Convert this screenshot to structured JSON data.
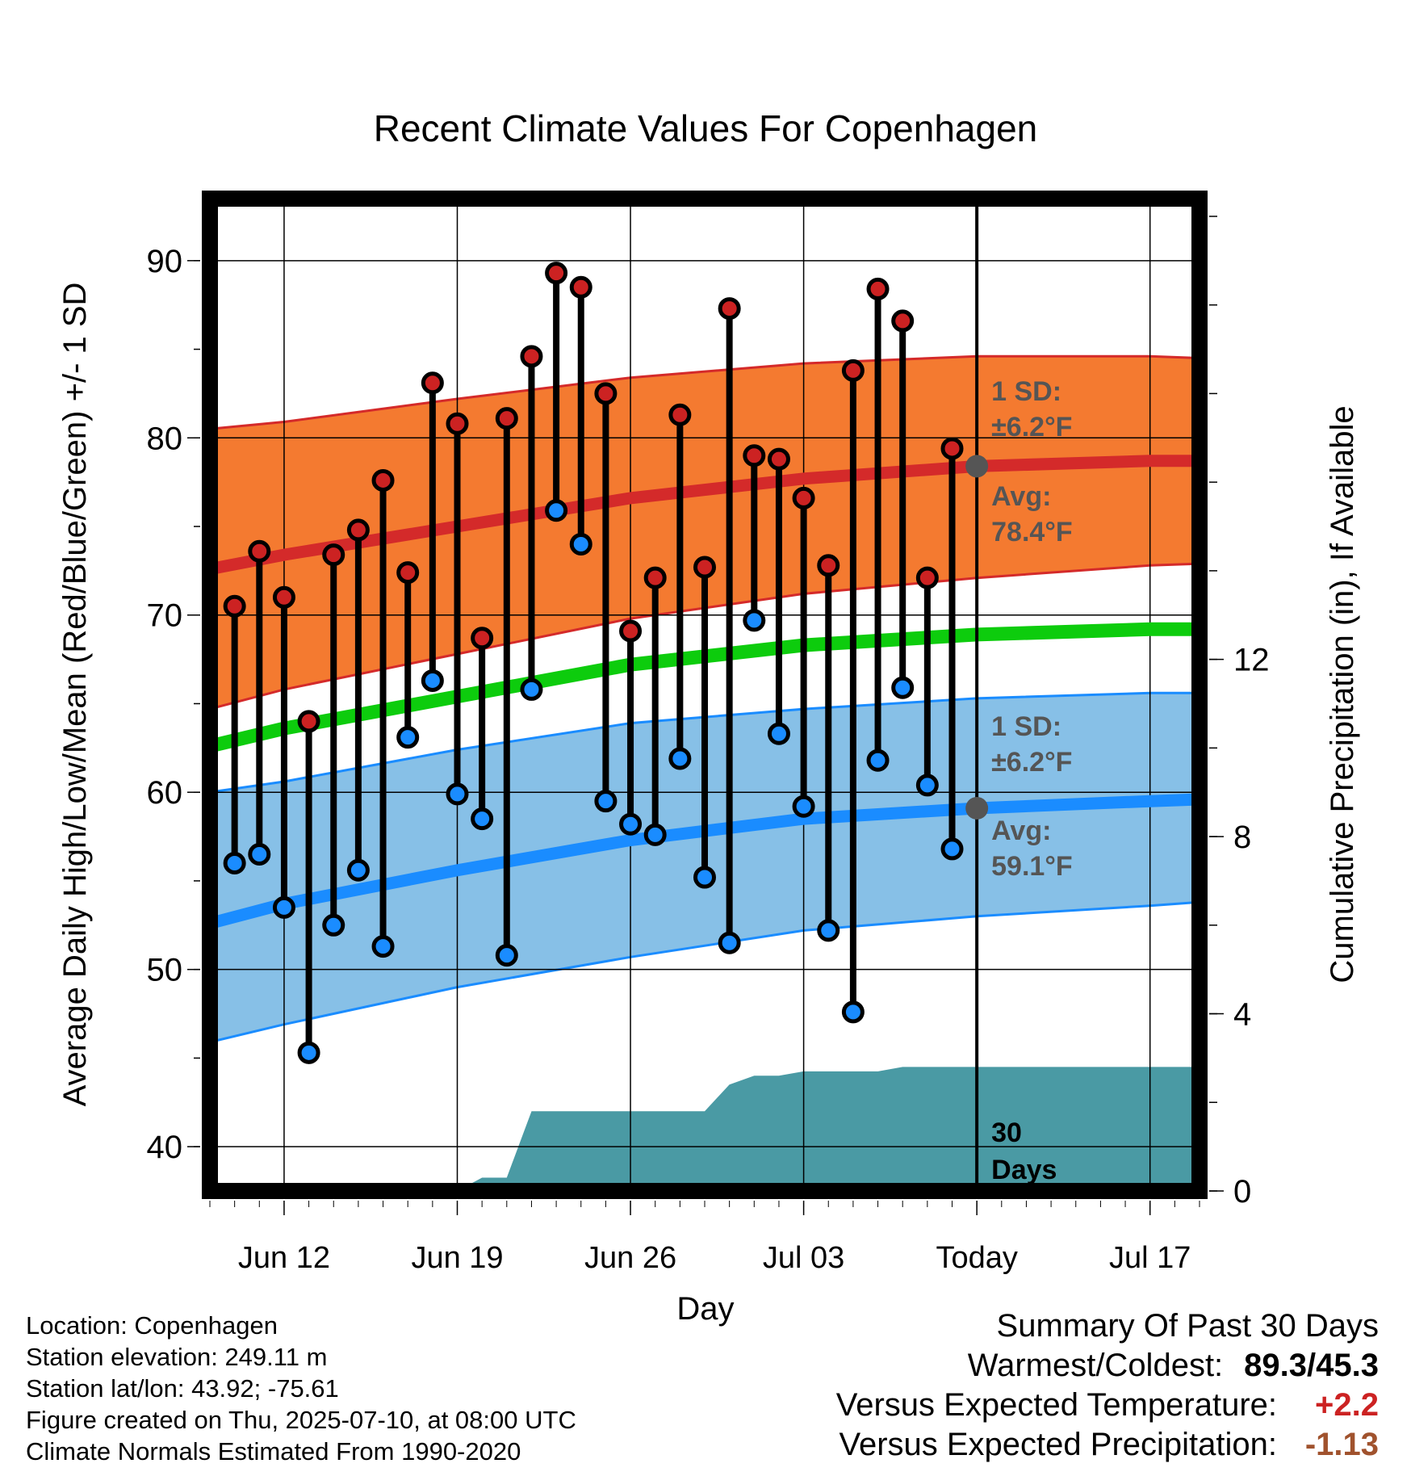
{
  "chart_data": {
    "type": "line",
    "title": "Recent Climate Values For Copenhagen",
    "xlabel": "Day",
    "ylabel": "Average Daily High/Low/Mean (Red/Blue/Green) +/- 1 SD",
    "y2label": "Cumulative Precipitation (in), If Available",
    "ylim": [
      37.5,
      93.5
    ],
    "y_ticks": [
      40,
      50,
      60,
      70,
      80,
      90
    ],
    "y2lim": [
      0,
      22.4
    ],
    "y2_ticks": [
      0,
      4,
      8,
      12
    ],
    "xlim": [
      "2025-06-09",
      "2025-07-19"
    ],
    "x_ticks": [
      {
        "date": "2025-06-12",
        "label": "Jun 12"
      },
      {
        "date": "2025-06-19",
        "label": "Jun 19"
      },
      {
        "date": "2025-06-26",
        "label": "Jun 26"
      },
      {
        "date": "2025-07-03",
        "label": "Jul 03"
      },
      {
        "date": "2025-07-10",
        "label": "Today"
      },
      {
        "date": "2025-07-17",
        "label": "Jul 17"
      }
    ],
    "today": "2025-07-10",
    "daily_dates": [
      "2025-06-10",
      "2025-06-11",
      "2025-06-12",
      "2025-06-13",
      "2025-06-14",
      "2025-06-15",
      "2025-06-16",
      "2025-06-17",
      "2025-06-18",
      "2025-06-19",
      "2025-06-20",
      "2025-06-21",
      "2025-06-22",
      "2025-06-23",
      "2025-06-24",
      "2025-06-25",
      "2025-06-26",
      "2025-06-27",
      "2025-06-28",
      "2025-06-29",
      "2025-06-30",
      "2025-07-01",
      "2025-07-02",
      "2025-07-03",
      "2025-07-04",
      "2025-07-05",
      "2025-07-06",
      "2025-07-07",
      "2025-07-08",
      "2025-07-09"
    ],
    "daily_high": [
      70.5,
      73.6,
      71.0,
      64.0,
      73.4,
      74.8,
      77.6,
      72.4,
      83.1,
      80.8,
      68.7,
      81.1,
      84.6,
      89.3,
      88.5,
      82.5,
      69.1,
      72.1,
      81.3,
      72.7,
      87.3,
      79.0,
      78.8,
      76.6,
      72.8,
      83.8,
      88.4,
      86.6,
      72.1,
      79.4
    ],
    "daily_low": [
      56.0,
      56.5,
      53.5,
      45.3,
      52.5,
      55.6,
      51.3,
      63.1,
      66.3,
      59.9,
      58.5,
      50.8,
      65.8,
      75.9,
      74.0,
      59.5,
      58.2,
      57.6,
      61.9,
      55.2,
      51.5,
      69.7,
      63.3,
      59.2,
      52.2,
      47.6,
      61.8,
      65.9,
      60.4,
      56.8
    ],
    "normal_dates": [
      "2025-06-09",
      "2025-06-12",
      "2025-06-19",
      "2025-06-26",
      "2025-07-03",
      "2025-07-10",
      "2025-07-17",
      "2025-07-19"
    ],
    "normal_high": [
      72.6,
      73.4,
      75.0,
      76.6,
      77.7,
      78.4,
      78.7,
      78.7
    ],
    "normal_high_upper": [
      80.5,
      80.9,
      82.2,
      83.4,
      84.2,
      84.6,
      84.6,
      84.5
    ],
    "normal_high_lower": [
      64.7,
      65.8,
      67.8,
      69.8,
      71.2,
      72.1,
      72.8,
      72.9
    ],
    "normal_mean": [
      62.6,
      63.6,
      65.4,
      67.2,
      68.3,
      68.9,
      69.2,
      69.2
    ],
    "normal_low": [
      52.6,
      53.7,
      55.6,
      57.3,
      58.5,
      59.1,
      59.5,
      59.6
    ],
    "normal_low_upper": [
      60.0,
      60.6,
      62.4,
      63.9,
      64.7,
      65.3,
      65.6,
      65.6
    ],
    "normal_low_lower": [
      45.9,
      46.9,
      49.0,
      50.7,
      52.2,
      53.0,
      53.6,
      53.8
    ],
    "precip_dates": [
      "2025-06-09",
      "2025-06-19",
      "2025-06-20",
      "2025-06-21",
      "2025-06-22",
      "2025-06-29",
      "2025-06-30",
      "2025-07-01",
      "2025-07-02",
      "2025-07-03",
      "2025-07-06",
      "2025-07-07",
      "2025-07-10",
      "2025-07-19"
    ],
    "precip_cum": [
      0.0,
      0.0,
      0.3,
      0.3,
      1.8,
      1.8,
      2.4,
      2.6,
      2.6,
      2.7,
      2.7,
      2.8,
      2.8,
      2.8
    ],
    "high_stats": {
      "sd_label": "1 SD:",
      "sd_value": "±6.2°F",
      "avg_label": "Avg:",
      "avg_value": "78.4°F",
      "avg": 78.4
    },
    "low_stats": {
      "sd_label": "1 SD:",
      "sd_value": "±6.2°F",
      "avg_label": "Avg:",
      "avg_value": "59.1°F",
      "avg": 59.1
    },
    "precip_window_label": [
      "30",
      "Days"
    ],
    "colors": {
      "high_band": "#f47a30",
      "high_line": "#d42a2a",
      "high_dot": "#cc2222",
      "low_band": "#87c0e7",
      "low_line": "#1a8cff",
      "low_dot": "#1a8cff",
      "mean_line": "#0dcc0d",
      "precip": "#4a9aa4",
      "stats_text": "#555555"
    }
  },
  "metadata": {
    "location": "Location: Copenhagen",
    "elevation": "Station elevation: 249.11 m",
    "latlon": "Station lat/lon: 43.92; -75.61",
    "created": "Figure created on Thu, 2025-07-10, at 08:00 UTC",
    "normals": "Climate Normals Estimated From 1990-2020"
  },
  "summary": {
    "title": "Summary Of Past 30 Days",
    "warm_cold_label": "Warmest/Coldest:",
    "warm_cold_value": "89.3/45.3",
    "temp_label": "Versus Expected Temperature:",
    "temp_value": "+2.2",
    "temp_color": "#cc2222",
    "precip_label": "Versus Expected Precipitation:",
    "precip_value": "-1.13",
    "precip_color": "#a0522d"
  }
}
